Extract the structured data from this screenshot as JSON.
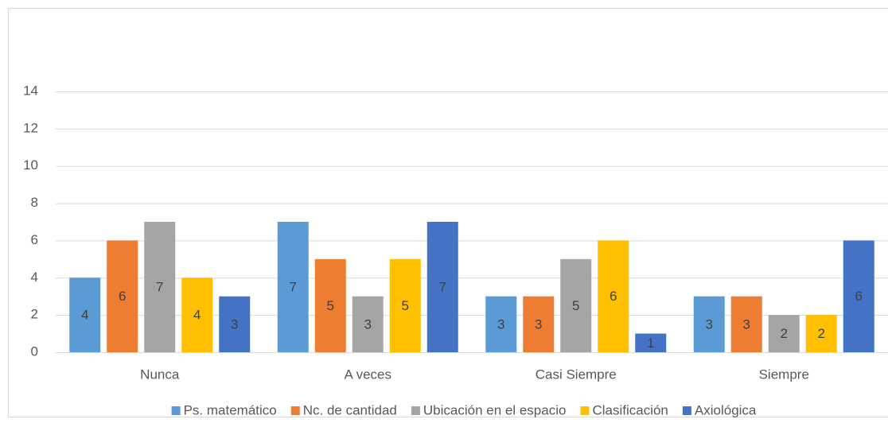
{
  "chart_data": {
    "type": "bar",
    "categories": [
      "Nunca",
      "A veces",
      "Casi Siempre",
      "Siempre"
    ],
    "series": [
      {
        "name": "Ps. matemático",
        "color": "#5b9bd5",
        "values": [
          4,
          7,
          3,
          3
        ]
      },
      {
        "name": "Nc. de cantidad",
        "color": "#ed7d31",
        "values": [
          6,
          5,
          3,
          3
        ]
      },
      {
        "name": "Ubicación en el espacio",
        "color": "#a5a5a5",
        "values": [
          7,
          3,
          5,
          2
        ]
      },
      {
        "name": "Clasificación",
        "color": "#ffc000",
        "values": [
          4,
          5,
          6,
          2
        ]
      },
      {
        "name": "Axiológica",
        "color": "#4472c4",
        "values": [
          3,
          7,
          1,
          6
        ]
      }
    ],
    "ylim": [
      0,
      14
    ],
    "yticks": [
      0,
      2,
      4,
      6,
      8,
      10,
      12,
      14
    ],
    "grid": true,
    "legend": "bottom"
  }
}
